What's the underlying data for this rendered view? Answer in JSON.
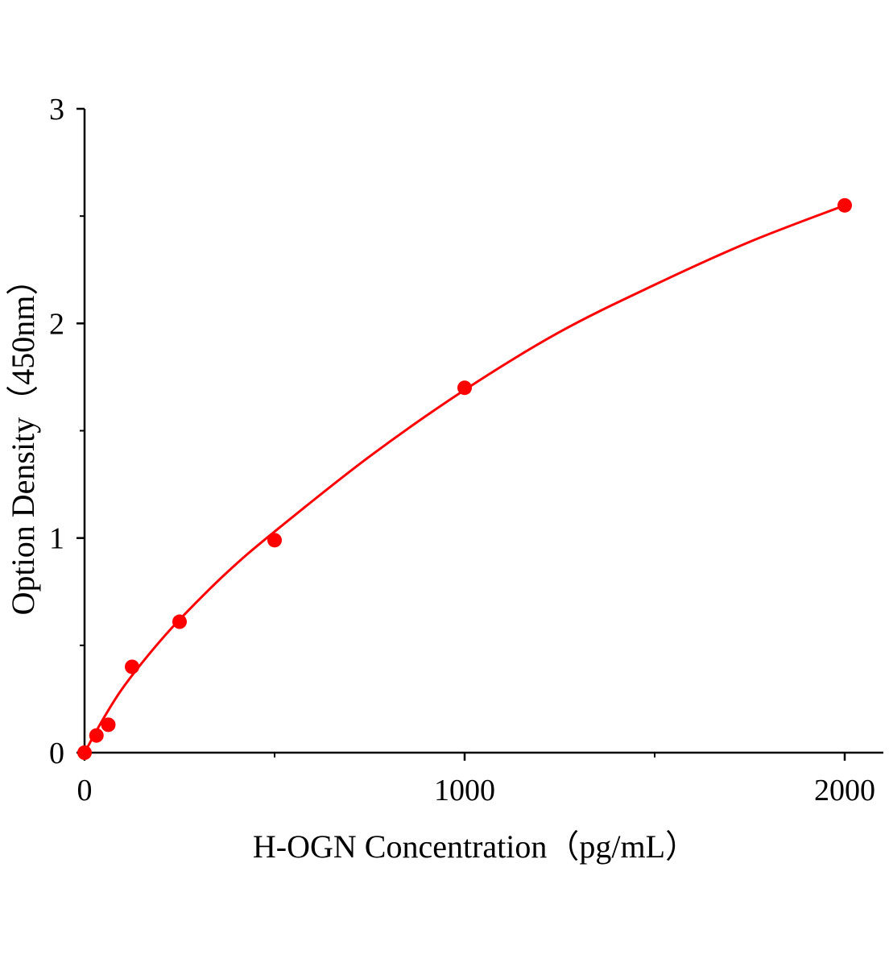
{
  "chart_data": {
    "type": "scatter",
    "title": "",
    "xlabel": "H-OGN Concentration（pg/mL）",
    "ylabel": "Option Density（450nm）",
    "xlim": [
      0,
      2100
    ],
    "ylim": [
      0,
      3
    ],
    "x_ticks": [
      0,
      1000,
      2000
    ],
    "x_minor_ticks": [
      500,
      1500
    ],
    "y_ticks": [
      0,
      1,
      2,
      3
    ],
    "y_minor_ticks": [
      0.5,
      1.5,
      2.5
    ],
    "grid": false,
    "color": "#ff0000",
    "points": [
      {
        "x": 0,
        "y": 0
      },
      {
        "x": 31.25,
        "y": 0.08
      },
      {
        "x": 62.5,
        "y": 0.13
      },
      {
        "x": 125,
        "y": 0.4
      },
      {
        "x": 250,
        "y": 0.61
      },
      {
        "x": 500,
        "y": 0.99
      },
      {
        "x": 1000,
        "y": 1.7
      },
      {
        "x": 2000,
        "y": 2.55
      }
    ],
    "fit_curve": {
      "x": [
        0,
        50,
        100,
        175,
        250,
        375,
        500,
        750,
        1000,
        1250,
        1500,
        1750,
        2000
      ],
      "y": [
        0,
        0.16,
        0.3,
        0.47,
        0.62,
        0.84,
        1.03,
        1.38,
        1.69,
        1.96,
        2.18,
        2.38,
        2.55
      ]
    }
  }
}
